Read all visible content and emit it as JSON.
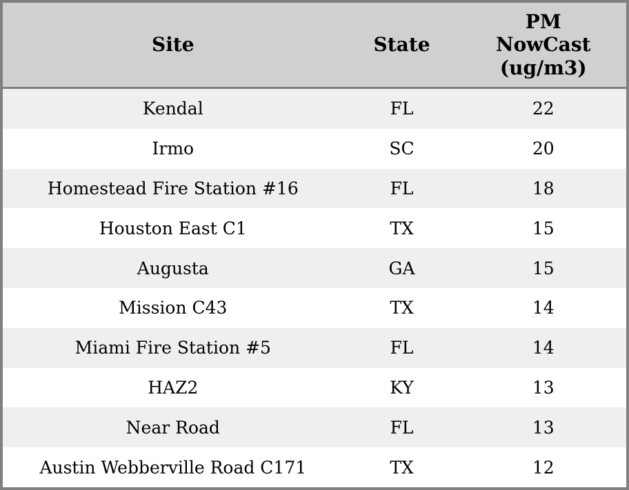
{
  "table": {
    "columns": [
      {
        "label": "Site"
      },
      {
        "label": "State"
      },
      {
        "label": "PM NowCast (ug/m3)",
        "lines": [
          "PM",
          "NowCast",
          "(ug/m3)"
        ]
      }
    ],
    "rows": [
      {
        "site": "Kendal",
        "state": "FL",
        "value": "22"
      },
      {
        "site": "Irmo",
        "state": "SC",
        "value": "20"
      },
      {
        "site": "Homestead Fire Station #16",
        "state": "FL",
        "value": "18"
      },
      {
        "site": "Houston East C1",
        "state": "TX",
        "value": "15"
      },
      {
        "site": "Augusta",
        "state": "GA",
        "value": "15"
      },
      {
        "site": "Mission C43",
        "state": "TX",
        "value": "14"
      },
      {
        "site": "Miami Fire Station #5",
        "state": "FL",
        "value": "14"
      },
      {
        "site": "HAZ2",
        "state": "KY",
        "value": "13"
      },
      {
        "site": "Near Road",
        "state": "FL",
        "value": "13"
      },
      {
        "site": "Austin Webberville Road C171",
        "state": "TX",
        "value": "12"
      }
    ]
  },
  "chart_data": {
    "type": "table",
    "title": "",
    "columns": [
      "Site",
      "State",
      "PM NowCast (ug/m3)"
    ],
    "rows": [
      [
        "Kendal",
        "FL",
        22
      ],
      [
        "Irmo",
        "SC",
        20
      ],
      [
        "Homestead Fire Station #16",
        "FL",
        18
      ],
      [
        "Houston East C1",
        "TX",
        15
      ],
      [
        "Augusta",
        "GA",
        15
      ],
      [
        "Mission C43",
        "TX",
        14
      ],
      [
        "Miami Fire Station #5",
        "FL",
        14
      ],
      [
        "HAZ2",
        "KY",
        13
      ],
      [
        "Near Road",
        "FL",
        13
      ],
      [
        "Austin Webberville Road C171",
        "TX",
        12
      ]
    ],
    "layout": {
      "zebra_striping": true,
      "header_position": "top",
      "text_align": "center"
    }
  },
  "colors": {
    "header_bg": "#d0d0d0",
    "row_bg": "#ffffff",
    "row_alt_bg": "#efefef",
    "border": "#808080",
    "text": "#000000"
  }
}
